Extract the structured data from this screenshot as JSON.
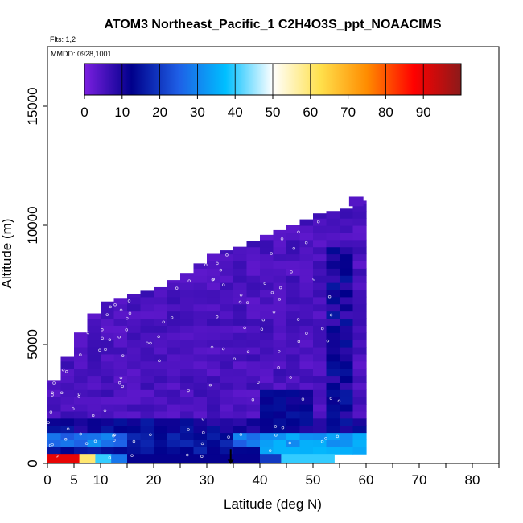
{
  "chart_data": {
    "type": "heatmap",
    "title": "ATOM3 Northeast_Pacific_1 C2H4O3S_ppt_NOAACIMS",
    "subtitle_flights": "Flts: 1,2",
    "subtitle_dates": "MMDD: 0928,1001",
    "xlabel": "Latitude (deg N)",
    "ylabel": "Altitude (m)",
    "xlim": [
      0,
      85
    ],
    "ylim": [
      0,
      17500
    ],
    "x_ticks": [
      0,
      5,
      10,
      20,
      30,
      40,
      50,
      60,
      70,
      80
    ],
    "x_minor_ticks": [
      15,
      25,
      35,
      45,
      55,
      65,
      75,
      85
    ],
    "y_ticks": [
      0,
      5000,
      10000,
      15000
    ],
    "colorbar": {
      "min": 0,
      "max": 100,
      "ticks": [
        0,
        10,
        20,
        30,
        40,
        50,
        60,
        70,
        80,
        90
      ],
      "colors": [
        "#7b1fe0",
        "#00008b",
        "#1e5fe6",
        "#00bfff",
        "#ffffff",
        "#ffe14d",
        "#ff8c00",
        "#ff0000",
        "#8b1a1a"
      ]
    },
    "surface_band": {
      "lat_start": 0,
      "lat_end": 54,
      "alt_top": 400,
      "segments": [
        {
          "lat": [
            0,
            6
          ],
          "value": 90
        },
        {
          "lat": [
            6,
            9
          ],
          "value": 60
        },
        {
          "lat": [
            9,
            12
          ],
          "value": 40
        },
        {
          "lat": [
            12,
            15
          ],
          "value": 28
        },
        {
          "lat": [
            15,
            40
          ],
          "value": 12
        },
        {
          "lat": [
            40,
            44
          ],
          "value": 20
        },
        {
          "lat": [
            44,
            54
          ],
          "value": 40
        }
      ]
    },
    "profile_envelope": {
      "lat": [
        0,
        2,
        4,
        6,
        10,
        15,
        20,
        25,
        30,
        35,
        40,
        45,
        50,
        55,
        58,
        60
      ],
      "alt_top": [
        3500,
        4300,
        5000,
        6000,
        6800,
        7100,
        7400,
        8000,
        8800,
        9100,
        9600,
        10000,
        10500,
        10700,
        11100,
        11200
      ]
    },
    "flight_marker_lat": 34.5
  }
}
